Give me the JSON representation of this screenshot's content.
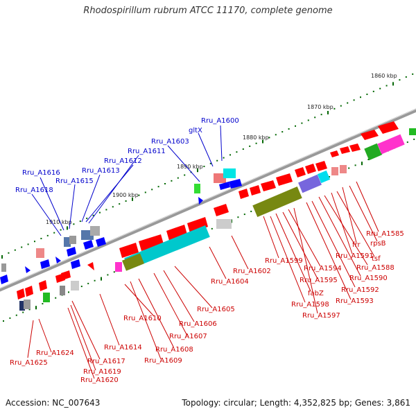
{
  "title": "Rhodospirillum rubrum ATCC 11170, complete genome",
  "accession_label": "Accession: NC_007643",
  "topology_label": "Topology: circular; Length: 4,352,825 bp; Genes: 3,861",
  "colors": {
    "backbone": "#888888",
    "forward_label": "#0000cc",
    "reverse_label": "#cc0000",
    "reverse_gene": "#ff0000",
    "forward_gene": "#0000ff",
    "tick": "#006600"
  },
  "scale_labels": [
    "1860 kbp",
    "1870 kbp",
    "1880 kbp",
    "1890 kbp",
    "1900 kbp",
    "1910 kbp"
  ],
  "top_labels": [
    "Rru_A1600",
    "gltX",
    "Rru_A1603",
    "Rru_A1611",
    "Rru_A1612",
    "Rru_A1613",
    "Rru_A1616",
    "Rru_A1615",
    "Rru_A1618"
  ],
  "bottom_labels": [
    "Rru_A1585",
    "rpsB",
    "frr",
    "tsf",
    "Rru_A1591",
    "Rru_A1588",
    "Rru_A1590",
    "Rru_A1592",
    "Rru_A1593",
    "Rru_A1594",
    "Rru_A1595",
    "Rru_A1599",
    "fabZ",
    "Rru_A1598",
    "Rru_A1597",
    "Rru_A1602",
    "Rru_A1604",
    "Rru_A1605",
    "Rru_A1606",
    "Rru_A1607",
    "Rru_A1608",
    "Rru_A1609",
    "Rru_A1610",
    "Rru_A1614",
    "Rru_A1617",
    "Rru_A1619",
    "Rru_A1620",
    "Rru_A1624",
    "Rru_A1625"
  ]
}
